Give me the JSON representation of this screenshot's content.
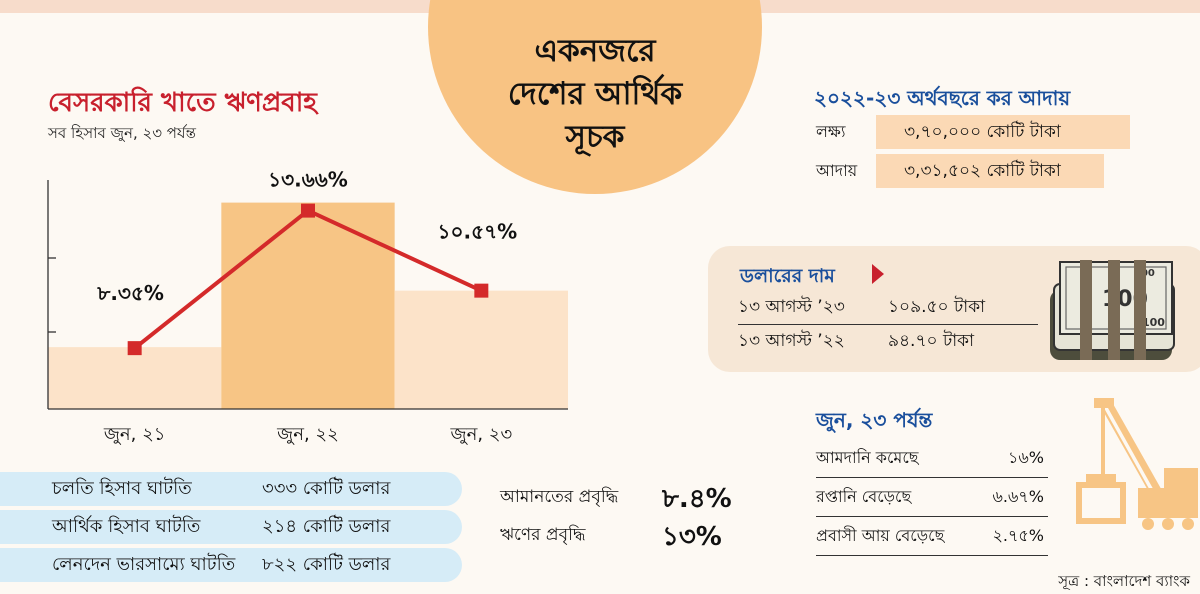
{
  "header": {
    "title_line1": "একনজরে",
    "title_line2": "দেশের আর্থিক",
    "title_line3": "সূচক"
  },
  "chart": {
    "title": "বেসরকারি খাতে ঋণপ্রবাহ",
    "subtitle": "সব হিসাব জুন, ২৩ পর্যন্ত"
  },
  "chart_data": {
    "type": "line",
    "title": "বেসরকারি খাতে ঋণপ্রবাহ",
    "subtitle": "সব হিসাব জুন, ২৩ পর্যন্ত",
    "categories": [
      "জুন, ২১",
      "জুন, ২২",
      "জুন, ২৩"
    ],
    "values": [
      8.35,
      13.66,
      10.57
    ],
    "data_labels": [
      "৮.৩৫%",
      "১৩.৬৬%",
      "১০.৫৭%"
    ],
    "ylim": [
      6,
      16
    ],
    "grid": false,
    "colors": {
      "line": "#d42a2a",
      "marker": "#d42a2a",
      "band_light": "#fce3c9",
      "band_dark": "#f7c585"
    }
  },
  "tax": {
    "title": "২০২২-২৩ অর্থবছরে কর আদায়",
    "rows": [
      {
        "label": "লক্ষ্য",
        "value": "৩,৭০,০০০ কোটি টাকা"
      },
      {
        "label": "আদায়",
        "value": "৩,৩১,৫০২ কোটি টাকা"
      }
    ]
  },
  "dollar": {
    "title": "ডলারের দাম",
    "rows": [
      {
        "date": "১৩ আগস্ট ’২৩",
        "value": "১০৯.৫০ টাকা"
      },
      {
        "date": "১৩ আগস্ট ’২২",
        "value": "৯৪.৭০ টাকা"
      }
    ],
    "icon": "dollar-bundle-icon"
  },
  "deficits": [
    {
      "label": "চলতি হিসাব ঘাটতি",
      "value": "৩৩৩ কোটি ডলার"
    },
    {
      "label": "আর্থিক হিসাব ঘাটতি",
      "value": "২১৪ কোটি ডলার"
    },
    {
      "label": "লেনদেন ভারসাম্যে ঘাটতি",
      "value": "৮২২ কোটি ডলার"
    }
  ],
  "growth": [
    {
      "label": "আমানতের প্রবৃদ্ধি",
      "value": "৮.৪%"
    },
    {
      "label": "ঋণের প্রবৃদ্ধি",
      "value": "১৩%"
    }
  ],
  "june": {
    "title": "জুন, ২৩ পর্যন্ত",
    "rows": [
      {
        "label": "আমদানি কমেছে",
        "value": "১৬%"
      },
      {
        "label": "রপ্তানি বেড়েছে",
        "value": "৬.৬৭%"
      },
      {
        "label": "প্রবাসী আয় বেড়েছে",
        "value": "২.৭৫%"
      }
    ],
    "icon": "crane-icon"
  },
  "source": "সূত্র : বাংলাদেশ ব্যাংক"
}
